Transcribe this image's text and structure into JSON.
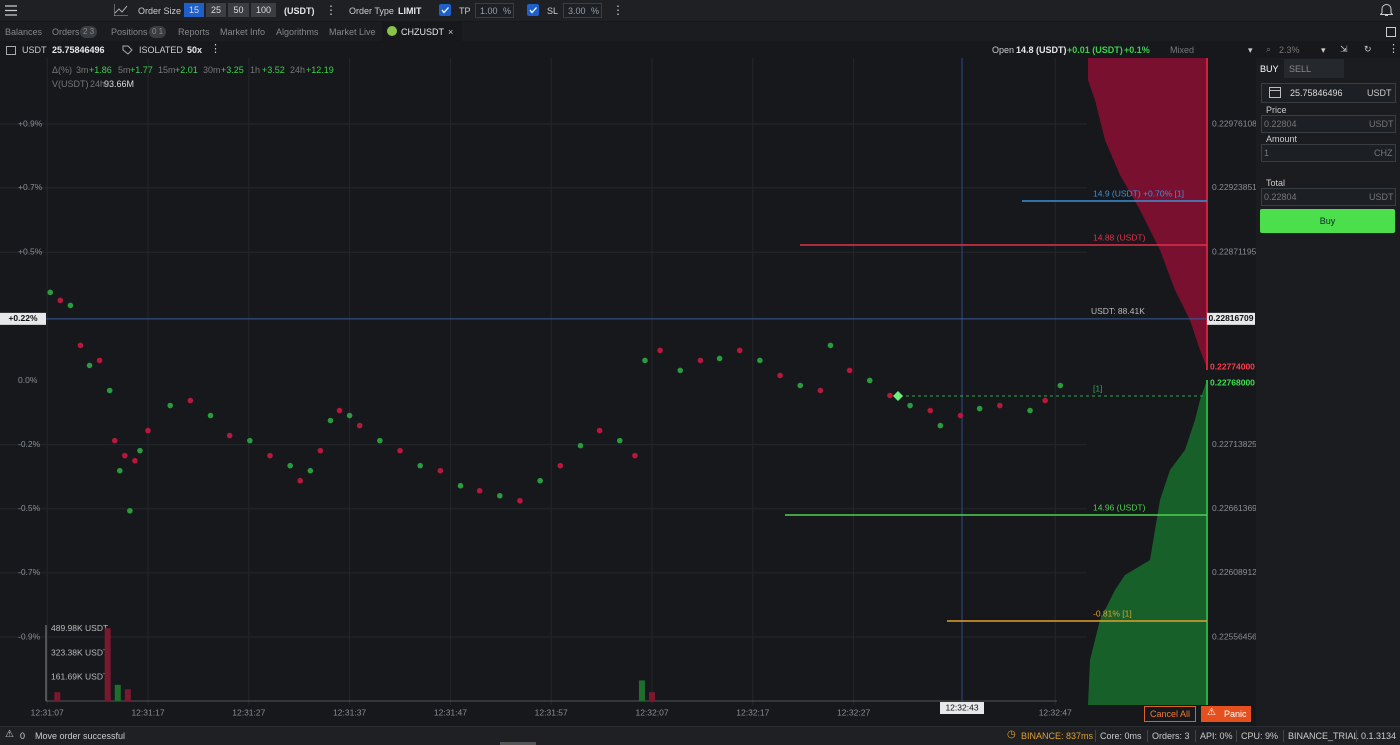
{
  "toolbar": {
    "order_size_label": "Order Size",
    "sizes": [
      "15",
      "25",
      "50",
      "100"
    ],
    "size_unit": "(USDT)",
    "order_type_label": "Order Type",
    "order_type": "LIMIT",
    "tp_label": "TP",
    "tp_value": "1.00",
    "tp_unit": "%",
    "sl_label": "SL",
    "sl_value": "3.00",
    "sl_unit": "%"
  },
  "tabs": [
    {
      "label": "Balances"
    },
    {
      "label": "Orders",
      "badge": "2 3"
    },
    {
      "label": "Positions",
      "badge": "0 1"
    },
    {
      "label": "Reports"
    },
    {
      "label": "Market Info"
    },
    {
      "label": "Algorithms"
    },
    {
      "label": "Market Live"
    },
    {
      "label": "CHZUSDT"
    }
  ],
  "instrument": {
    "currency": "USDT",
    "balance": "25.75846496",
    "margin": "ISOLATED",
    "leverage": "50x",
    "open_label": "Open",
    "open_value": "14.8 (USDT)",
    "pnl": "+0.01 (USDT)",
    "pnl_pct": "+0.1%",
    "mode": "Mixed",
    "zoom": "2.3%"
  },
  "stats": {
    "delta_label": "Δ(%)",
    "deltas": [
      {
        "period": "3m",
        "value": "+1.86"
      },
      {
        "period": "5m",
        "value": "+1.77"
      },
      {
        "period": "15m",
        "value": "+2.01"
      },
      {
        "period": "30m",
        "value": "+3.25"
      },
      {
        "period": "1h",
        "value": "+3.52"
      },
      {
        "period": "24h",
        "value": "+12.19"
      }
    ],
    "volume_label": "V(USDT)",
    "volume_period": "24h",
    "volume_value": "93.66M"
  },
  "chart": {
    "type": "scatter",
    "xlim": [
      6.88,
      110.15
    ],
    "ylim": [
      0.2250083,
      0.230301
    ],
    "xticks": [
      {
        "value": 7,
        "label": "12:31:07"
      },
      {
        "value": 17,
        "label": "12:31:17"
      },
      {
        "value": 27,
        "label": "12:31:27"
      },
      {
        "value": 37,
        "label": "12:31:37"
      },
      {
        "value": 47,
        "label": "12:31:47"
      },
      {
        "value": 57,
        "label": "12:31:57"
      },
      {
        "value": 67,
        "label": "12:32:07"
      },
      {
        "value": 77,
        "label": "12:32:17"
      },
      {
        "value": 87,
        "label": "12:32:27"
      },
      {
        "value": 107,
        "label": "12:32:47"
      }
    ],
    "yticks": [
      0.22976108,
      0.22923851,
      0.22871195,
      0.22713825,
      0.22661369,
      0.22608912,
      0.22556456
    ],
    "pct_ticks": [
      {
        "value": 0.22976108,
        "label": "+0.9%"
      },
      {
        "value": 0.22923851,
        "label": "+0.7%"
      },
      {
        "value": 0.22871195,
        "label": "+0.5%"
      },
      {
        "value": 0.2276627,
        "label": "0.0%"
      },
      {
        "value": 0.22713825,
        "label": "-0.2%"
      },
      {
        "value": 0.22661369,
        "label": "-0.5%"
      },
      {
        "value": 0.22608912,
        "label": "-0.7%"
      },
      {
        "value": 0.22556456,
        "label": "-0.9%"
      }
    ],
    "grid": true,
    "series": [
      {
        "color": "#2a9b3e",
        "x": [
          7.3,
          9.3,
          11.2,
          13.2,
          14.2,
          15.2,
          16.2,
          19.2,
          23.2,
          27.1,
          31.1,
          33.1,
          35.1,
          37.0,
          40.0,
          44.0,
          48.0,
          51.9,
          55.9,
          59.9,
          63.8,
          66.3,
          69.8,
          73.7,
          77.7,
          81.7,
          84.7,
          88.6,
          92.6,
          95.6,
          99.5,
          104.5,
          107.5
        ],
        "values": [
          0.228384,
          0.228277,
          0.227786,
          0.227581,
          0.226925,
          0.226597,
          0.227089,
          0.227458,
          0.227376,
          0.227171,
          0.226966,
          0.226925,
          0.227335,
          0.227376,
          0.227171,
          0.226966,
          0.226802,
          0.22672,
          0.226843,
          0.22713,
          0.227171,
          0.227827,
          0.227745,
          0.227843,
          0.227827,
          0.227622,
          0.22795,
          0.227663,
          0.227458,
          0.227294,
          0.227433,
          0.227417,
          0.227622
        ]
      },
      {
        "color": "#b8183c",
        "x": [
          8.3,
          10.3,
          12.2,
          13.7,
          14.7,
          15.7,
          17,
          21.2,
          25.1,
          29.1,
          32.1,
          34.1,
          36.0,
          38.0,
          42.0,
          46.0,
          49.9,
          53.9,
          57.9,
          61.8,
          65.3,
          67.8,
          71.8,
          75.7,
          79.7,
          83.7,
          86.6,
          90.6,
          94.6,
          97.6,
          101.5,
          106.0
        ],
        "values": [
          0.228318,
          0.22795,
          0.227827,
          0.227171,
          0.227048,
          0.227007,
          0.227253,
          0.227499,
          0.227212,
          0.227048,
          0.226843,
          0.227089,
          0.227417,
          0.227294,
          0.227089,
          0.226925,
          0.226761,
          0.226679,
          0.226966,
          0.227253,
          0.227048,
          0.227909,
          0.227827,
          0.227909,
          0.227704,
          0.227581,
          0.227745,
          0.22754,
          0.227417,
          0.227376,
          0.227458,
          0.227499
        ]
      }
    ],
    "current": {
      "value": 0.22816709,
      "pct_label": "+0.22%",
      "note": "USDT: 88.41K"
    },
    "ask_marker": {
      "value": 0.22774,
      "label": "0.22774000"
    },
    "bid_marker": {
      "value": 0.22768,
      "label": "0.22768000"
    },
    "orders": [
      {
        "label": "14.9 (USDT) +0.70% [1]",
        "color": "#3d8fd6"
      },
      {
        "label": "14.88 (USDT)",
        "color": "#e0304a"
      },
      {
        "label": "[1]",
        "color": "#2fa84a"
      },
      {
        "label": "14.96 (USDT)",
        "color": "#4fd14f"
      },
      {
        "label": "-0.81% [1]",
        "color": "#e0a030"
      }
    ],
    "crosshair_label": "12:32:43",
    "volume": {
      "ylim": [
        0,
        517200
      ],
      "yticks": [
        {
          "value": 489980,
          "label": "489.98K USDT"
        },
        {
          "value": 323380,
          "label": "323.38K USDT"
        },
        {
          "value": 161690,
          "label": "161.69K USDT"
        }
      ],
      "series": [
        {
          "color": "#1f6e2e",
          "x": [
            14.0,
            66.0
          ],
          "values": [
            110000,
            140000
          ]
        },
        {
          "color": "#7a1830",
          "x": [
            8.0,
            13.0,
            15.0,
            67.0
          ],
          "values": [
            60000,
            495000,
            80000,
            60000
          ]
        }
      ]
    }
  },
  "order_panel": {
    "buy_tab": "BUY",
    "sell_tab": "SELL",
    "wallet": "25.75846496",
    "wallet_unit": "USDT",
    "price_label": "Price",
    "price": "0.22804",
    "price_unit": "USDT",
    "amount_label": "Amount",
    "amount": "1",
    "amount_unit": "CHZ",
    "total_label": "Total",
    "total": "0.22804",
    "total_unit": "USDT",
    "buy_button": "Buy"
  },
  "actions": {
    "cancel_all": "Cancel All",
    "panic": "Panic"
  },
  "status_bar": {
    "alerts": "0",
    "message": "Move order successful",
    "items": [
      "BINANCE: 837ms",
      "Core: 0ms",
      "Orders: 3",
      "API: 0%",
      "CPU: 9%",
      "BINANCE_TRIAL",
      "0.1.3134"
    ]
  }
}
